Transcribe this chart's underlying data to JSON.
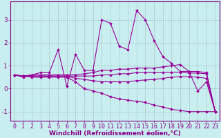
{
  "xlabel": "Windchill (Refroidissement éolien,°C)",
  "background_color": "#c8eef0",
  "grid_color": "#b0d0d0",
  "line_color": "#990099",
  "spine_color": "#880088",
  "tick_color": "#880088",
  "xlim": [
    -0.5,
    23.5
  ],
  "ylim": [
    -1.4,
    3.8
  ],
  "xticks": [
    0,
    1,
    2,
    3,
    4,
    5,
    6,
    7,
    8,
    9,
    10,
    11,
    12,
    13,
    14,
    15,
    16,
    17,
    18,
    19,
    20,
    21,
    22,
    23
  ],
  "yticks": [
    -1,
    0,
    1,
    2,
    3
  ],
  "lines": [
    [
      0.6,
      0.5,
      0.6,
      0.7,
      0.7,
      1.7,
      0.1,
      1.5,
      0.8,
      0.8,
      3.0,
      2.85,
      1.85,
      1.7,
      3.4,
      3.0,
      2.1,
      1.4,
      1.1,
      0.75,
      0.75,
      -0.1,
      0.3,
      -1.0
    ],
    [
      0.6,
      0.55,
      0.6,
      0.6,
      0.6,
      0.6,
      0.6,
      0.6,
      0.65,
      0.7,
      0.8,
      0.8,
      0.85,
      0.85,
      0.9,
      0.9,
      0.9,
      0.95,
      1.0,
      1.05,
      0.75,
      0.75,
      0.7,
      -1.0
    ],
    [
      0.6,
      0.55,
      0.55,
      0.55,
      0.55,
      0.55,
      0.55,
      0.55,
      0.55,
      0.55,
      0.6,
      0.6,
      0.65,
      0.65,
      0.7,
      0.7,
      0.7,
      0.7,
      0.72,
      0.72,
      0.68,
      0.68,
      0.65,
      -1.0
    ],
    [
      0.6,
      0.55,
      0.55,
      0.55,
      0.55,
      0.55,
      0.55,
      0.45,
      0.4,
      0.35,
      0.3,
      0.3,
      0.3,
      0.3,
      0.35,
      0.38,
      0.4,
      0.45,
      0.5,
      0.52,
      0.52,
      0.5,
      0.45,
      -1.0
    ],
    [
      0.6,
      0.55,
      0.5,
      0.5,
      0.5,
      0.5,
      0.5,
      0.3,
      0.0,
      -0.1,
      -0.2,
      -0.35,
      -0.45,
      -0.5,
      -0.55,
      -0.6,
      -0.72,
      -0.8,
      -0.9,
      -0.95,
      -1.0,
      -1.0,
      -1.0,
      -1.0
    ]
  ],
  "tick_fontsize": 6.0,
  "xlabel_fontsize": 6.5
}
